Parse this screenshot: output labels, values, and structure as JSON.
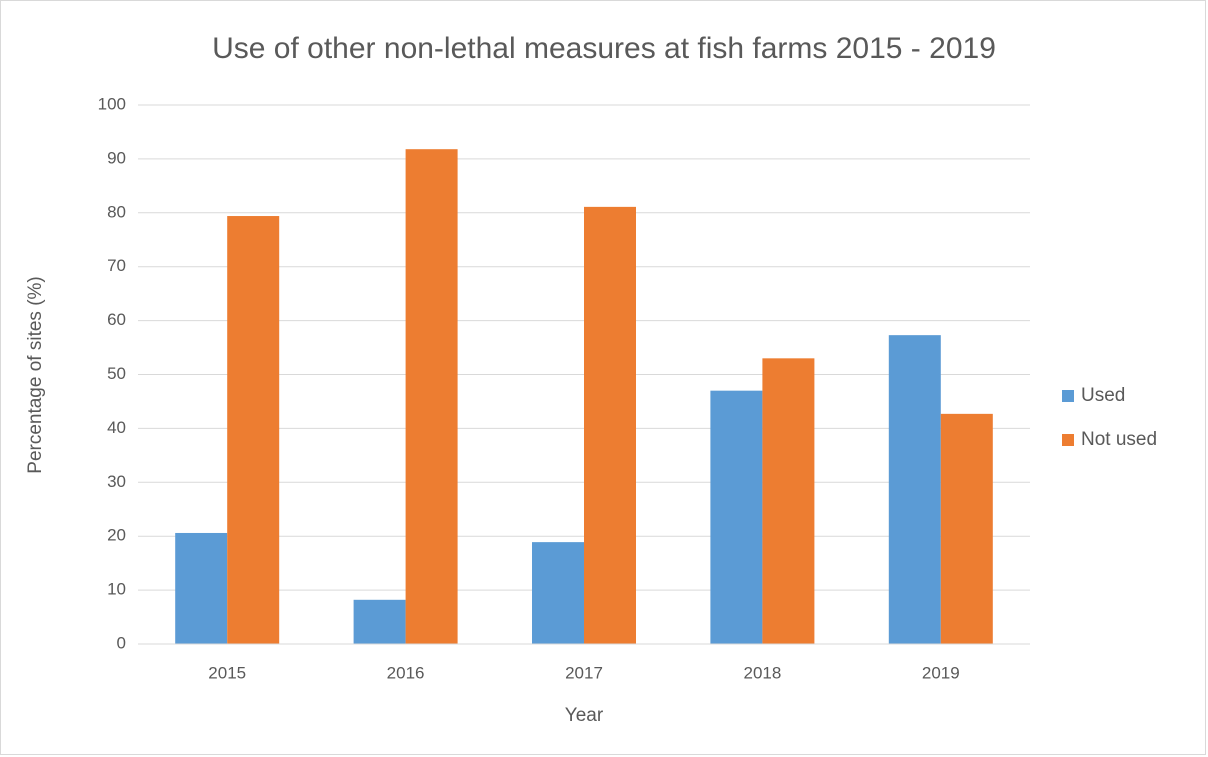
{
  "chart_data": {
    "type": "bar",
    "title": "Use of other non-lethal measures at fish farms 2015 - 2019",
    "x_label": "Year",
    "y_label": "Percentage of sites (%)",
    "categories": [
      "2015",
      "2016",
      "2017",
      "2018",
      "2019"
    ],
    "series": [
      {
        "name": "Used",
        "color": "#5b9bd5",
        "values": [
          20.6,
          8.2,
          18.9,
          47,
          57.3
        ]
      },
      {
        "name": "Not used",
        "color": "#ed7d31",
        "values": [
          79.4,
          91.8,
          81.1,
          53,
          42.7
        ]
      }
    ],
    "ylim": [
      0,
      100
    ],
    "yticks": [
      0,
      10,
      20,
      30,
      40,
      50,
      60,
      70,
      80,
      90,
      100
    ],
    "grid": true,
    "legend": "right"
  }
}
